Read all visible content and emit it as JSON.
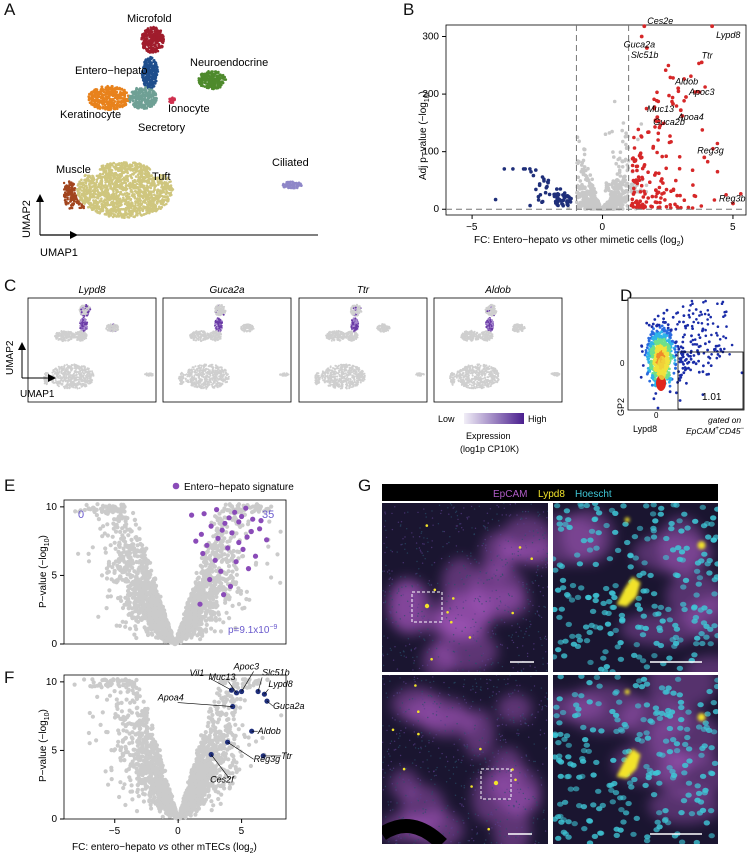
{
  "panels": {
    "a": "A",
    "b": "B",
    "c": "C",
    "d": "D",
    "e": "E",
    "f": "F",
    "g": "G"
  },
  "umap_a": {
    "xlabel": "UMAP1",
    "ylabel": "UMAP2",
    "clusters": [
      "Microfold",
      "Entero−hepato",
      "Neuroendocrine",
      "Keratinocyte",
      "Ionocyte",
      "Secretory",
      "Muscle",
      "Tuft",
      "Ciliated"
    ]
  },
  "feature_c": {
    "genes": [
      "Lypd8",
      "Guca2a",
      "Ttr",
      "Aldob"
    ],
    "xlabel": "UMAP1",
    "ylabel": "UMAP2",
    "legend_low": "Low",
    "legend_high": "High",
    "legend_title1": "Expression",
    "legend_title2": "(log1p CP10K)"
  },
  "facs_d": {
    "xlabel": "Lypd8",
    "ylabel": "GP2",
    "gate_value": "1.01",
    "gate_note1": "gated on",
    "gate_note2": "EpCAM",
    "gate_note3": "CD45",
    "axis_zero_x": "0",
    "axis_zero_y": "0"
  },
  "image_g": {
    "stain1": "EpCAM",
    "stain2": "Lypd8",
    "stain3": "Hoescht",
    "colors": {
      "epcam": "#b05cc8",
      "lypd8": "#f2e32a",
      "hoechst": "#3fc6d6"
    }
  },
  "chart_data": [
    {
      "type": "scatter",
      "panel": "B",
      "title": "",
      "xlabel": "FC: Entero−hepato vs other mimetic cells (log2)",
      "ylabel": "Adj p−value (−log10)",
      "xlim": [
        -6,
        5.5
      ],
      "ylim": [
        -10,
        320
      ],
      "xticks": [
        -5,
        0,
        5
      ],
      "yticks": [
        0,
        100,
        200,
        300
      ],
      "thresholds": {
        "x": [
          -1,
          1
        ],
        "y": 0
      },
      "colors": {
        "up": "#d62728",
        "down": "#1f2f7a",
        "ns": "#c8c8c8"
      },
      "labels": [
        {
          "gene": "Ces2e",
          "x": 1.6,
          "y": 318
        },
        {
          "gene": "Lypd8",
          "x": 4.2,
          "y": 318
        },
        {
          "gene": "Guca2a",
          "x": 1.5,
          "y": 300
        },
        {
          "gene": "Slc51b",
          "x": 1.7,
          "y": 280
        },
        {
          "gene": "Ttr",
          "x": 3.8,
          "y": 255
        },
        {
          "gene": "Aldob",
          "x": 2.9,
          "y": 210
        },
        {
          "gene": "Apoc3",
          "x": 3.2,
          "y": 195
        },
        {
          "gene": "Muc13",
          "x": 2.7,
          "y": 183
        },
        {
          "gene": "Apoa4",
          "x": 3.0,
          "y": 172
        },
        {
          "gene": "Guca2b",
          "x": 2.1,
          "y": 160
        },
        {
          "gene": "Reg3g",
          "x": 3.9,
          "y": 90
        },
        {
          "gene": "Reg3b",
          "x": 5.0,
          "y": 10
        }
      ]
    },
    {
      "type": "scatter",
      "panel": "E",
      "title": "",
      "xlabel": "",
      "ylabel": "P−value (−log10)",
      "xlim": [
        -8,
        8
      ],
      "ylim": [
        0,
        10.5
      ],
      "yticks": [
        0,
        5,
        10
      ],
      "legend": "Entero−hepato signature",
      "count_left": "0",
      "count_right": "35",
      "pvalue_text": "p=9.1x10−9",
      "highlight_color": "#8a4bb8",
      "highlight_points": [
        {
          "x": 1.2,
          "y": 9.4
        },
        {
          "x": 2.1,
          "y": 9.5
        },
        {
          "x": 3.0,
          "y": 9.8
        },
        {
          "x": 4.3,
          "y": 9.6
        },
        {
          "x": 5.1,
          "y": 9.9
        },
        {
          "x": 2.6,
          "y": 8.6
        },
        {
          "x": 3.6,
          "y": 8.8
        },
        {
          "x": 4.6,
          "y": 8.9
        },
        {
          "x": 5.6,
          "y": 9.1
        },
        {
          "x": 6.1,
          "y": 8.4
        },
        {
          "x": 1.9,
          "y": 8.0
        },
        {
          "x": 3.1,
          "y": 7.7
        },
        {
          "x": 4.1,
          "y": 8.1
        },
        {
          "x": 5.2,
          "y": 7.8
        },
        {
          "x": 6.6,
          "y": 7.6
        },
        {
          "x": 2.3,
          "y": 7.2
        },
        {
          "x": 3.8,
          "y": 7.0
        },
        {
          "x": 4.9,
          "y": 6.9
        },
        {
          "x": 5.8,
          "y": 6.4
        },
        {
          "x": 2.9,
          "y": 6.1
        },
        {
          "x": 4.4,
          "y": 6.0
        },
        {
          "x": 3.3,
          "y": 5.3
        },
        {
          "x": 5.3,
          "y": 5.5
        },
        {
          "x": 2.5,
          "y": 4.7
        },
        {
          "x": 4.0,
          "y": 4.2
        },
        {
          "x": 3.5,
          "y": 3.6
        },
        {
          "x": 1.8,
          "y": 2.9
        },
        {
          "x": 6.2,
          "y": 9.0
        },
        {
          "x": 4.8,
          "y": 9.3
        },
        {
          "x": 3.9,
          "y": 9.2
        },
        {
          "x": 2.0,
          "y": 6.6
        },
        {
          "x": 5.5,
          "y": 8.2
        },
        {
          "x": 1.5,
          "y": 7.5
        },
        {
          "x": 4.6,
          "y": 7.4
        },
        {
          "x": 3.4,
          "y": 8.3
        }
      ]
    },
    {
      "type": "scatter",
      "panel": "F",
      "title": "",
      "xlabel": "FC: entero−hepato vs other mTECs (log2)",
      "ylabel": "P−value (−log10)",
      "xlim": [
        -9,
        8.5
      ],
      "ylim": [
        0,
        10.5
      ],
      "xticks": [
        -5,
        0,
        5
      ],
      "yticks": [
        0,
        5,
        10
      ],
      "highlight_color": "#1f2f7a",
      "labels": [
        {
          "gene": "Vil1",
          "x": 4.2,
          "y": 9.4
        },
        {
          "gene": "Apoc3",
          "x": 5.0,
          "y": 9.3
        },
        {
          "gene": "Muc13",
          "x": 4.6,
          "y": 9.2
        },
        {
          "gene": "Slc51b",
          "x": 6.3,
          "y": 9.3
        },
        {
          "gene": "Lypd8",
          "x": 6.8,
          "y": 9.1
        },
        {
          "gene": "Guca2a",
          "x": 7.0,
          "y": 8.6
        },
        {
          "gene": "Apoa4",
          "x": 4.3,
          "y": 8.2
        },
        {
          "gene": "Aldob",
          "x": 5.8,
          "y": 6.4
        },
        {
          "gene": "Reg3g",
          "x": 3.9,
          "y": 5.6
        },
        {
          "gene": "Ttr",
          "x": 6.7,
          "y": 4.6
        },
        {
          "gene": "Ces2f",
          "x": 2.6,
          "y": 4.7
        }
      ]
    }
  ]
}
